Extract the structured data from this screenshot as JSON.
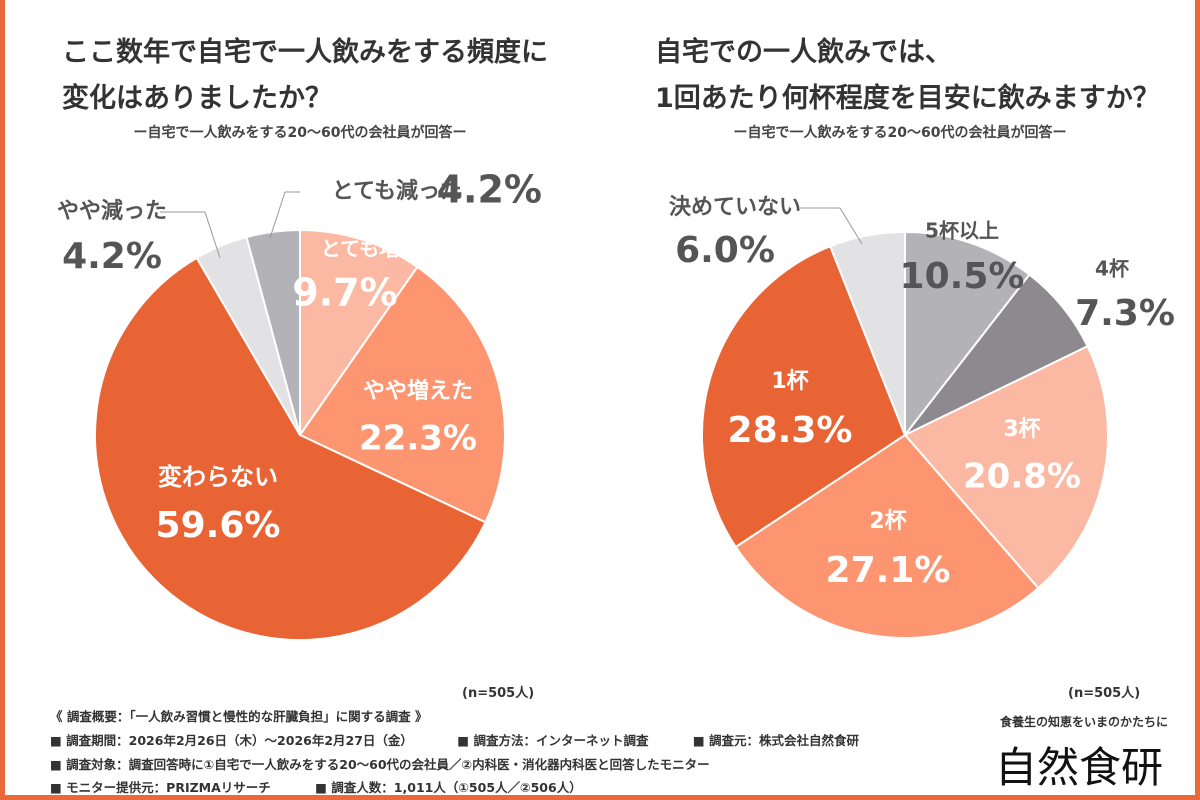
{
  "chart_data": [
    {
      "type": "pie",
      "title": "ここ数年で自宅で一人飲みをする頻度に\n変化はありましたか？",
      "title_lines": [
        "ここ数年で自宅で一人飲みをする頻度に",
        "変化はありましたか？"
      ],
      "subtitle": "ー自宅で一人飲みをする20〜60代の会社員が回答ー",
      "n_label": "(n=505人)",
      "slices": [
        {
          "label": "とても増えた",
          "value": 9.7,
          "value_label": "9.7%",
          "color": "#fbb9a3",
          "text_color": "#ffffff"
        },
        {
          "label": "やや増えた",
          "value": 22.3,
          "value_label": "22.3%",
          "color": "#fd9570",
          "text_color": "#ffffff"
        },
        {
          "label": "変わらない",
          "value": 59.6,
          "value_label": "59.6%",
          "color": "#e96435",
          "text_color": "#ffffff"
        },
        {
          "label": "やや減った",
          "value": 4.2,
          "value_label": "4.2%",
          "color": "#e2e1e3",
          "text_color": "#555555"
        },
        {
          "label": "とても減った",
          "value": 4.2,
          "value_label": "4.2%",
          "color": "#b3b2b6",
          "text_color": "#555555"
        }
      ]
    },
    {
      "type": "pie",
      "title": "自宅での一人飲みでは、\n1回あたり何杯程度を目安に飲みますか？",
      "title_lines": [
        "自宅での一人飲みでは、",
        "1回あたり何杯程度を目安に飲みますか？"
      ],
      "subtitle": "ー自宅で一人飲みをする20〜60代の会社員が回答ー",
      "n_label": "(n=505人)",
      "slices": [
        {
          "label": "5杯以上",
          "value": 10.5,
          "value_label": "10.5%",
          "color": "#b3b2b6",
          "text_color": "#555555"
        },
        {
          "label": "4杯",
          "value": 7.3,
          "value_label": "7.3%",
          "color": "#8c8a8e",
          "text_color": "#555555"
        },
        {
          "label": "3杯",
          "value": 20.8,
          "value_label": "20.8%",
          "color": "#fbb9a3",
          "text_color": "#ffffff"
        },
        {
          "label": "2杯",
          "value": 27.1,
          "value_label": "27.1%",
          "color": "#fd9570",
          "text_color": "#ffffff"
        },
        {
          "label": "1杯",
          "value": 28.3,
          "value_label": "28.3%",
          "color": "#e96435",
          "text_color": "#ffffff"
        },
        {
          "label": "決めていない",
          "value": 6.0,
          "value_label": "6.0%",
          "color": "#e2e1e3",
          "text_color": "#555555"
        }
      ]
    }
  ],
  "footer": {
    "overview": "《 調査概要：「一人飲み習慣と慢性的な肝臓負担」に関する調査 》",
    "period": "■ 調査期間：2026年2月26日（木）〜2026年2月27日（金）",
    "method": "■ 調査方法：インターネット調査",
    "source": "■ 調査元：株式会社自然食研",
    "target": "■ 調査対象：調査回答時に①自宅で一人飲みをする20〜60代の会社員／②内科医・消化器内科医と回答したモニター",
    "provider": "■ モニター提供元：PRIZMAリサーチ",
    "count": "■ 調査人数：1,011人（①505人／②506人）"
  },
  "brand": {
    "tagline": "食養生の知恵をいまのかたちに",
    "logo": "自然食研",
    "accent": "#e9693a"
  }
}
